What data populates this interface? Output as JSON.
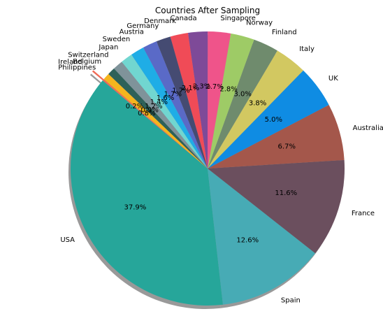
{
  "chart_data": {
    "type": "pie",
    "title": "Countries After Sampling",
    "slices": [
      {
        "label": "USA",
        "value": 37.9,
        "pct_text": "37.9%",
        "color": "#26a69a",
        "explode": 0
      },
      {
        "label": "Spain",
        "value": 12.6,
        "pct_text": "12.6%",
        "color": "#47abb5",
        "explode": 0
      },
      {
        "label": "France",
        "value": 11.6,
        "pct_text": "11.6%",
        "color": "#6b4f5e",
        "explode": 0
      },
      {
        "label": "Australia",
        "value": 6.7,
        "pct_text": "6.7%",
        "color": "#a4574b",
        "explode": 0
      },
      {
        "label": "UK",
        "value": 5.0,
        "pct_text": "5.0%",
        "color": "#0f8ce3",
        "explode": 0
      },
      {
        "label": "Italy",
        "value": 3.8,
        "pct_text": "3.8%",
        "color": "#d2c861",
        "explode": 0
      },
      {
        "label": "Finland",
        "value": 3.0,
        "pct_text": "3.0%",
        "color": "#6f8b6d",
        "explode": 0
      },
      {
        "label": "Norway",
        "value": 2.8,
        "pct_text": "2.8%",
        "color": "#9ecb66",
        "explode": 0
      },
      {
        "label": "Singapore",
        "value": 2.7,
        "pct_text": "2.7%",
        "color": "#ef548a",
        "explode": 0
      },
      {
        "label": "Canada",
        "value": 2.3,
        "pct_text": "2.3%",
        "color": "#7e4a98",
        "explode": 0
      },
      {
        "label": "Denmark",
        "value": 2.1,
        "pct_text": "2.1%",
        "color": "#f04b57",
        "explode": 0
      },
      {
        "label": "Germany",
        "value": 1.7,
        "pct_text": "1.7%",
        "color": "#454b72",
        "explode": 0
      },
      {
        "label": "Austria",
        "value": 1.7,
        "pct_text": "1.7%",
        "color": "#5a6ac7",
        "explode": 0
      },
      {
        "label": "Sweden",
        "value": 1.6,
        "pct_text": "1.6%",
        "color": "#1fade6",
        "explode": 0
      },
      {
        "label": "Japan",
        "value": 1.4,
        "pct_text": "1.4%",
        "color": "#71d6d0",
        "explode": 0
      },
      {
        "label": "Switzerland",
        "value": 1.2,
        "pct_text": "1.2%",
        "color": "#7f939a",
        "explode": 0
      },
      {
        "label": "Belgium",
        "value": 0.9,
        "pct_text": "0.9%",
        "color": "#2e6159",
        "explode": 0
      },
      {
        "label": "Philippines",
        "value": 0.8,
        "pct_text": "0.8%",
        "color": "#f5b51e",
        "explode": 0
      },
      {
        "label": "Ireland",
        "value": 0.2,
        "pct_text": "0.2%",
        "color": "#f06a55",
        "explode": 0.1
      }
    ],
    "start_angle_deg": 140,
    "direction": "counterclockwise",
    "shadow": true,
    "autopct": true
  }
}
